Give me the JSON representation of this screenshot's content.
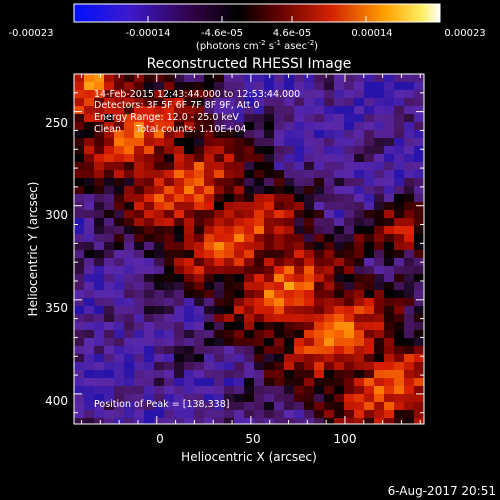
{
  "colorbar": {
    "tick_labels": [
      "-0.00023",
      "-0.00014",
      "-4.6e-05",
      "4.6e-05",
      "0.00014",
      "0.00023"
    ],
    "units_prefix": "(photons cm",
    "units_exp1": "-2",
    "units_mid1": " s",
    "units_exp2": "-1",
    "units_mid2": " asec",
    "units_exp3": "-2",
    "units_suffix": ")",
    "colors": [
      "#0000ff",
      "#4b0082",
      "#000000",
      "#8b0000",
      "#ff4500",
      "#ffd700",
      "#ffffff"
    ]
  },
  "title": "Reconstructed RHESSI Image",
  "annotations": {
    "line1": "14-Feb-2015 12:43:44.000 to 12:53:44.000",
    "line2": "Detectors: 3F 5F 6F 7F 8F 9F, Att 0",
    "line3": "Energy Range: 12.0 - 25.0 keV",
    "line4": "Clean     Total counts: 1.10E+04",
    "peak": "Position of Peak = [138,338]"
  },
  "axes": {
    "xlabel": "Heliocentric X (arcsec)",
    "ylabel": "Heliocentric Y (arcsec)",
    "x_ticks": [
      "0",
      "50",
      "100"
    ],
    "y_ticks": [
      "250",
      "300",
      "350",
      "400"
    ],
    "x_range": [
      -44,
      142
    ],
    "y_range": [
      234,
      420
    ]
  },
  "footer_date": "6-Aug-2017 20:51"
}
